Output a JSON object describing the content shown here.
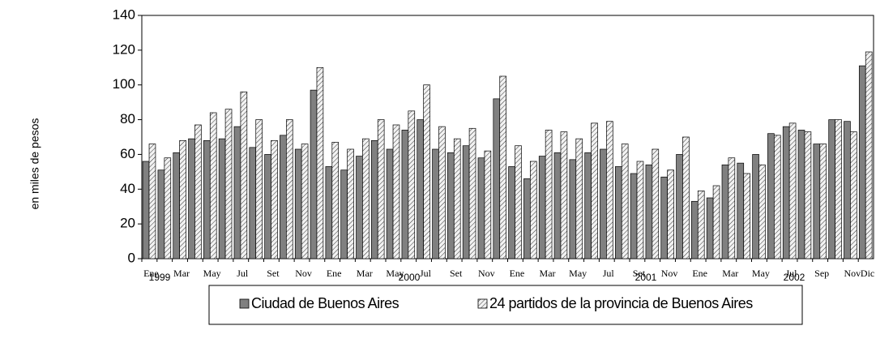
{
  "chart_data": {
    "type": "bar",
    "y_axis_label": "en miles de pesos",
    "categories": [
      "Ene",
      null,
      "Mar",
      null,
      "May",
      null,
      "Jul",
      null,
      "Set",
      null,
      "Nov",
      null,
      "Ene",
      null,
      "Mar",
      null,
      "May",
      null,
      "Jul",
      null,
      "Set",
      null,
      "Nov",
      null,
      "Ene",
      null,
      "Mar",
      null,
      "May",
      null,
      "Jul",
      null,
      "Set",
      null,
      "Nov",
      null,
      "Ene",
      null,
      "Mar",
      null,
      "May",
      null,
      "Jul",
      null,
      "Sep",
      null,
      "Nov",
      "Dic"
    ],
    "year_labels": [
      "1999",
      "2000",
      "2001",
      "2002"
    ],
    "series": [
      {
        "name": "Ciudad de Buenos Aires",
        "color": "#808080",
        "values": [
          56,
          51,
          61,
          69,
          68,
          69,
          76,
          64,
          60,
          71,
          63,
          97,
          53,
          51,
          59,
          68,
          63,
          74,
          80,
          63,
          61,
          65,
          58,
          92,
          53,
          46,
          59,
          61,
          57,
          61,
          63,
          53,
          49,
          54,
          47,
          60,
          33,
          35,
          54,
          55,
          60,
          72,
          76,
          74,
          66,
          80,
          79,
          111
        ]
      },
      {
        "name": "24 partidos de la provincia de Buenos Aires",
        "color": "#f2f2f2",
        "values": [
          66,
          58,
          68,
          77,
          84,
          86,
          96,
          80,
          68,
          80,
          66,
          110,
          67,
          63,
          69,
          80,
          77,
          85,
          100,
          76,
          69,
          75,
          62,
          105,
          65,
          56,
          74,
          73,
          69,
          78,
          79,
          66,
          56,
          63,
          51,
          70,
          39,
          42,
          58,
          49,
          54,
          71,
          78,
          73,
          66,
          80,
          73,
          119
        ]
      }
    ],
    "ylim": [
      0,
      140
    ],
    "yticks": [
      0,
      20,
      40,
      60,
      80,
      100,
      120,
      140
    ],
    "grid": false
  }
}
